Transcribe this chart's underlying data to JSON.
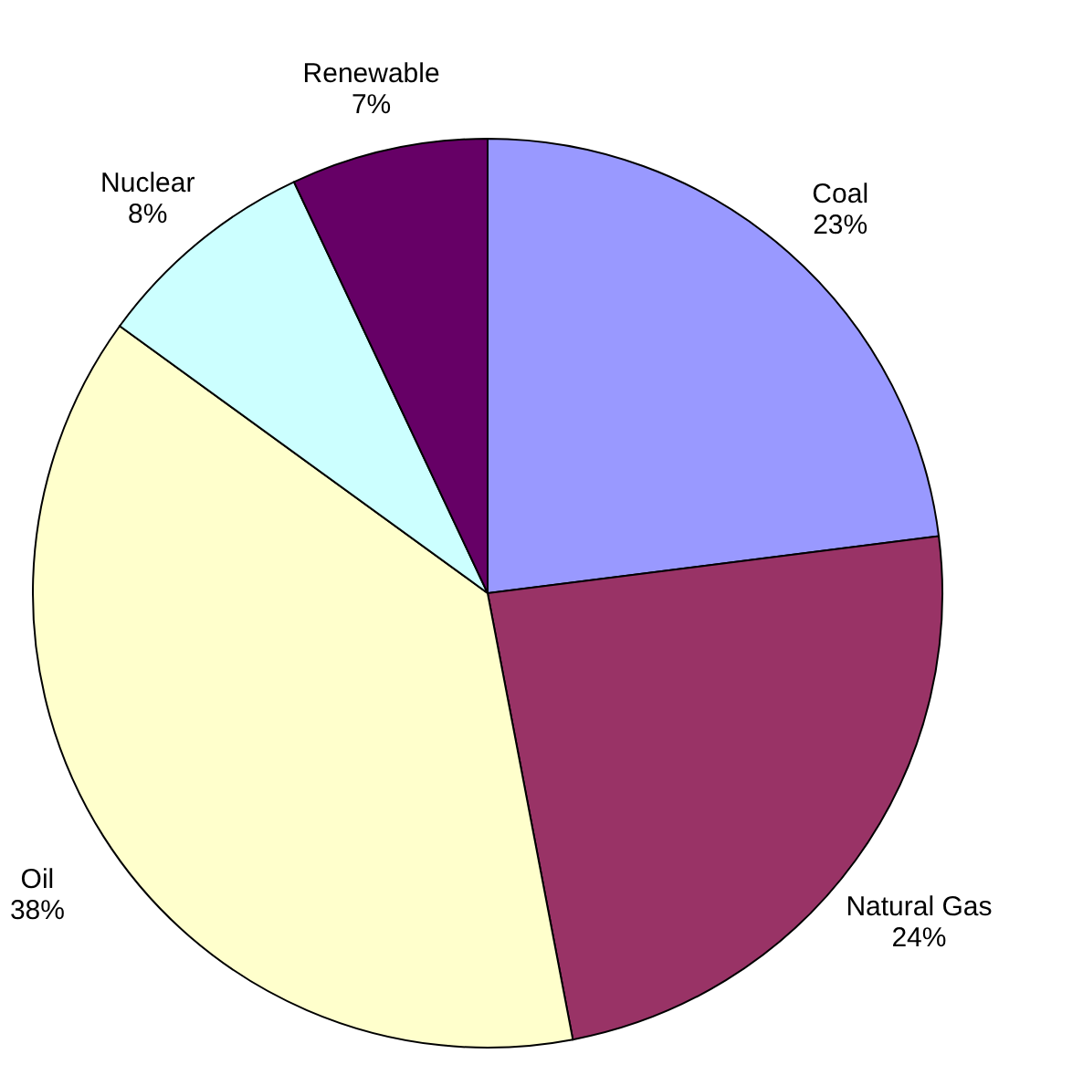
{
  "chart_data": {
    "type": "pie",
    "categories": [
      "Coal",
      "Natural Gas",
      "Oil",
      "Nuclear",
      "Renewable"
    ],
    "values": [
      23,
      24,
      38,
      8,
      7
    ],
    "value_labels": [
      "23%",
      "24%",
      "38%",
      "8%",
      "7%"
    ],
    "colors": [
      "#9999ff",
      "#993366",
      "#ffffcc",
      "#ccffff",
      "#660066"
    ]
  }
}
